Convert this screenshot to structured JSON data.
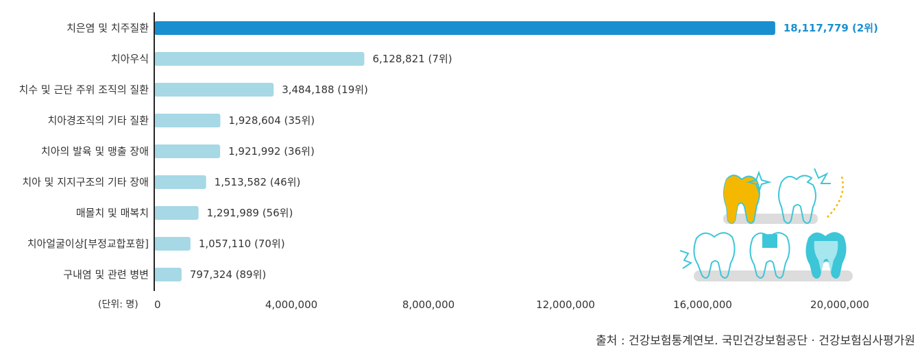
{
  "chart_data": {
    "type": "bar",
    "orientation": "horizontal",
    "categories": [
      "치은염 및 치주질환",
      "치아우식",
      "치수 및 근단 주위 조직의 질환",
      "치아경조직의 기타 질환",
      "치아의 발육 및 맹출 장애",
      "치아 및 지지구조의 기타 장애",
      "매몰치 및 매복치",
      "치아얼굴이상[부정교합포함]",
      "구내염 및 관련 병변"
    ],
    "values": [
      18117779,
      6128821,
      3484188,
      1928604,
      1921992,
      1513582,
      1291989,
      1057110,
      797324
    ],
    "value_labels": [
      "18,117,779 (2위)",
      "6,128,821 (7위)",
      "3,484,188 (19위)",
      "1,928,604 (35위)",
      "1,921,992 (36위)",
      "1,513,582 (46위)",
      "1,291,989 (56위)",
      "1,057,110 (70위)",
      "797,324 (89위)"
    ],
    "highlight_index": 0,
    "xlim": [
      0,
      20000000
    ],
    "x_ticks": [
      "0",
      "4,000,000",
      "8,000,000",
      "12,000,000",
      "16,000,000",
      "20,000,000"
    ],
    "unit_label": "(단위: 명)",
    "grid": false,
    "colors": {
      "highlight": "#1a8fd0",
      "bar": "#a6d8e6",
      "axis": "#222222"
    }
  },
  "source": "출처 : 건강보험통계연보. 국민건강보험공단 · 건강보험심사평가원",
  "illustration": {
    "icon": "teeth-illustration",
    "colors": {
      "outline": "#3cc6d8",
      "gold": "#f5b800",
      "shelf": "#dcdcdc"
    }
  }
}
